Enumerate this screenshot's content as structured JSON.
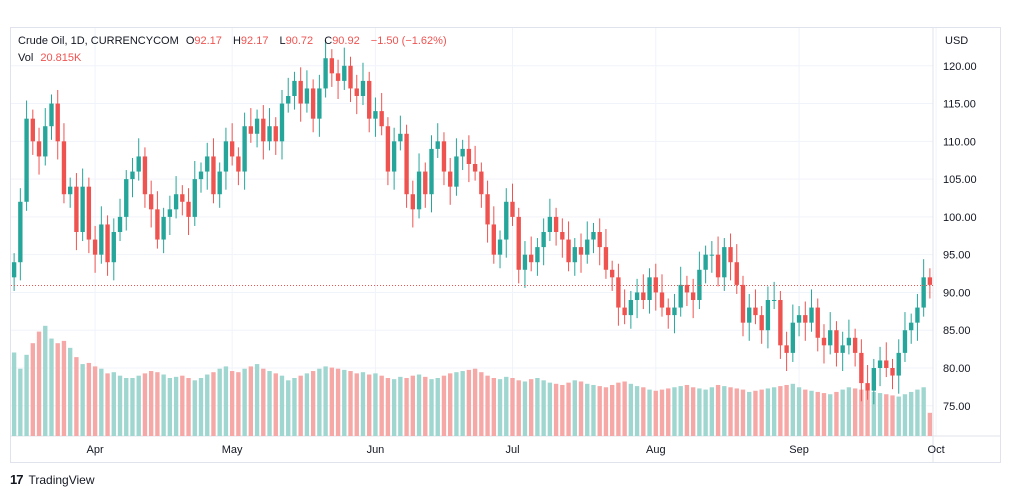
{
  "symbol": {
    "name": "Crude Oil, 1D, CURRENCYCOM",
    "o_label": "O",
    "o_value": "92.17",
    "h_label": "H",
    "h_value": "92.17",
    "l_label": "L",
    "l_value": "90.72",
    "c_label": "C",
    "c_value": "90.92",
    "change": "−1.50 (−1.62%)",
    "vol_label": "Vol",
    "vol_value": "20.815K"
  },
  "footer": {
    "brand": "TradingView"
  },
  "colors": {
    "up": "#26a69a",
    "down": "#ef5350",
    "vol_up": "#9fd6cf",
    "vol_down": "#f5a8a6"
  },
  "chart_data": {
    "type": "candlestick",
    "currency_label": "USD",
    "last_price": 90.92,
    "ylim": [
      71,
      125
    ],
    "y_ticks": [
      "75.00",
      "80.00",
      "85.00",
      "90.00",
      "95.00",
      "100.00",
      "105.00",
      "110.00",
      "115.00",
      "120.00"
    ],
    "x_ticks": [
      {
        "label": "Apr",
        "index": 13
      },
      {
        "label": "May",
        "index": 35
      },
      {
        "label": "Jun",
        "index": 58
      },
      {
        "label": "Jul",
        "index": 80
      },
      {
        "label": "Aug",
        "index": 103
      },
      {
        "label": "Sep",
        "index": 126
      },
      {
        "label": "Oct",
        "index": 148
      }
    ],
    "closes": [
      94,
      102,
      113,
      110,
      108,
      112,
      115,
      110,
      103,
      104,
      98,
      104,
      97,
      95,
      99,
      94,
      98,
      100,
      105,
      106,
      108,
      103,
      101,
      97,
      100,
      101,
      103,
      102,
      100,
      105,
      106,
      108,
      103,
      106,
      110,
      108,
      106,
      112,
      111,
      113,
      110,
      112,
      110,
      115,
      116,
      118,
      115,
      117,
      113,
      117,
      121,
      119,
      118,
      120,
      117,
      116,
      118,
      113,
      114,
      112,
      106,
      110,
      111,
      103,
      101,
      106,
      103,
      109,
      110,
      106,
      104,
      108,
      109,
      107,
      106,
      103,
      99,
      95,
      97,
      102,
      100,
      93,
      95,
      94,
      96,
      98,
      100,
      98,
      97,
      94,
      96,
      95,
      97,
      98,
      96,
      93,
      92,
      88,
      87,
      89,
      90,
      89,
      92,
      90,
      88,
      87,
      88,
      91,
      90,
      89,
      93,
      95,
      95,
      92,
      96,
      94,
      91,
      86,
      88,
      87,
      85,
      89,
      89,
      83,
      82,
      86,
      87,
      86,
      88,
      84,
      83,
      85,
      82,
      83,
      84,
      82,
      78,
      77,
      80,
      81,
      80,
      79,
      82,
      85,
      86,
      88,
      92,
      91
    ],
    "volumes": [
      72,
      58,
      70,
      80,
      90,
      95,
      84,
      80,
      82,
      76,
      68,
      62,
      63,
      60,
      58,
      54,
      55,
      52,
      50,
      50,
      52,
      54,
      56,
      55,
      53,
      50,
      51,
      52,
      50,
      48,
      50,
      53,
      55,
      58,
      60,
      56,
      55,
      58,
      60,
      62,
      58,
      56,
      54,
      52,
      48,
      50,
      52,
      54,
      56,
      58,
      60,
      59,
      58,
      57,
      56,
      54,
      55,
      53,
      54,
      52,
      50,
      49,
      51,
      50,
      52,
      53,
      51,
      49,
      50,
      52,
      54,
      55,
      56,
      57,
      58,
      55,
      52,
      50,
      49,
      51,
      50,
      48,
      47,
      49,
      50,
      48,
      46,
      45,
      44,
      46,
      48,
      47,
      45,
      44,
      43,
      42,
      44,
      46,
      47,
      45,
      43,
      42,
      40,
      39,
      40,
      41,
      42,
      43,
      44,
      42,
      41,
      40,
      42,
      44,
      43,
      42,
      41,
      40,
      38,
      39,
      40,
      41,
      42,
      43,
      44,
      45,
      42,
      40,
      39,
      38,
      37,
      36,
      38,
      40,
      42,
      41,
      40,
      39,
      38,
      37,
      36,
      35,
      34,
      36,
      38,
      40,
      42,
      20
    ]
  }
}
